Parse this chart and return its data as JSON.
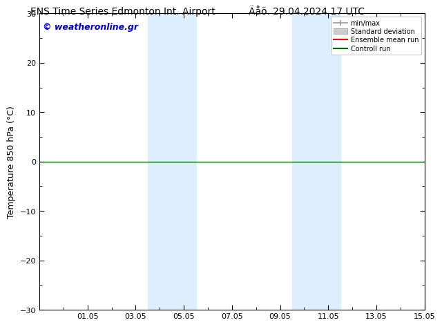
{
  "title_left": "ENS Time Series Edmonton Int. Airport",
  "title_right": "Äåö. 29.04.2024 17 UTC",
  "ylabel": "Temperature 850 hPa (°C)",
  "watermark": "© weatheronline.gr",
  "ylim": [
    -30,
    30
  ],
  "yticks": [
    -30,
    -20,
    -10,
    0,
    10,
    20,
    30
  ],
  "xtick_labels": [
    "01.05",
    "03.05",
    "05.05",
    "07.05",
    "09.05",
    "11.05",
    "13.05",
    "15.05"
  ],
  "xtick_positions": [
    2,
    4,
    6,
    8,
    10,
    12,
    14,
    16
  ],
  "xlim": [
    0,
    16
  ],
  "bg_color": "#ffffff",
  "shaded_regions": [
    {
      "xstart": 4.5,
      "xend": 6.5,
      "color": "#ddeeff"
    },
    {
      "xstart": 10.5,
      "xend": 12.5,
      "color": "#ddeeff"
    }
  ],
  "zero_line_color": "#006600",
  "zero_line_value": 0,
  "legend_items": [
    {
      "label": "min/max",
      "color": "#999999",
      "style": "minmax"
    },
    {
      "label": "Standard deviation",
      "color": "#cccccc",
      "style": "band"
    },
    {
      "label": "Ensemble mean run",
      "color": "#ff0000",
      "style": "line"
    },
    {
      "label": "Controll run",
      "color": "#006600",
      "style": "line"
    }
  ],
  "watermark_color": "#0000cc",
  "watermark_fontsize": 9,
  "title_fontsize": 10,
  "axis_label_fontsize": 9,
  "tick_fontsize": 8
}
